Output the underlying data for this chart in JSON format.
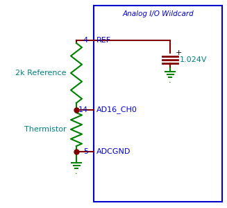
{
  "bg_color": "#ffffff",
  "box_color": "#0000cc",
  "wire_color": "#800000",
  "resistor_color": "#008000",
  "gnd_color": "#008000",
  "text_blue": "#0000cc",
  "text_cyan": "#008080",
  "text_black": "#000000",
  "title": "Analog I/O Wildcard",
  "label_ref": "REF",
  "label_adc": "AD16_CH0",
  "label_gnd": "ADCGND",
  "label_voltage": "1.024V",
  "label_2k": "2k Reference",
  "label_therm": "Thermistor",
  "pin4": "4",
  "pin14": "14",
  "pin5": "5"
}
